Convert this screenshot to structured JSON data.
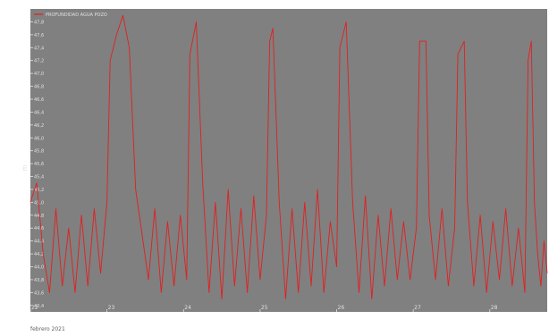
{
  "chart_data": {
    "type": "line",
    "title": "",
    "legend": {
      "position": "top-left",
      "entries": [
        "PROFUNDIDAD AGUA POZO"
      ]
    },
    "xlabel": "febrero 2021",
    "ylabel": "m",
    "xlim": [
      "2021-02-22",
      "2021-02-28T18:00"
    ],
    "ylim": [
      43.3,
      48.0
    ],
    "x_tick_labels": [
      "22",
      "23",
      "24",
      "25",
      "26",
      "27",
      "28"
    ],
    "y_tick_labels": [
      "43,4",
      "43,6",
      "43,8",
      "44,0",
      "44,2",
      "44,4",
      "44,6",
      "44,8",
      "45,0",
      "45,2",
      "45,4",
      "45,6",
      "45,8",
      "46,0",
      "46,2",
      "46,4",
      "46,6",
      "46,8",
      "47,0",
      "47,2",
      "47,4",
      "47,6",
      "47,8"
    ],
    "grid": false,
    "colors": {
      "series": "#e02020",
      "plot_background": "#808080",
      "axis_text": "#e0e0e0"
    },
    "series": [
      {
        "name": "PROFUNDIDAD AGUA POZO",
        "points": [
          [
            "2021-02-22T00:00",
            45.0
          ],
          [
            "2021-02-22T02:00",
            45.3
          ],
          [
            "2021-02-22T04:00",
            44.2
          ],
          [
            "2021-02-22T06:00",
            43.6
          ],
          [
            "2021-02-22T08:00",
            44.9
          ],
          [
            "2021-02-22T10:00",
            43.7
          ],
          [
            "2021-02-22T12:00",
            44.6
          ],
          [
            "2021-02-22T14:00",
            43.6
          ],
          [
            "2021-02-22T16:00",
            44.8
          ],
          [
            "2021-02-22T18:00",
            43.7
          ],
          [
            "2021-02-22T20:00",
            44.9
          ],
          [
            "2021-02-22T22:00",
            43.9
          ],
          [
            "2021-02-23T00:00",
            45.0
          ],
          [
            "2021-02-23T01:00",
            47.2
          ],
          [
            "2021-02-23T03:00",
            47.6
          ],
          [
            "2021-02-23T05:00",
            47.9
          ],
          [
            "2021-02-23T07:00",
            47.4
          ],
          [
            "2021-02-23T09:00",
            45.2
          ],
          [
            "2021-02-23T11:00",
            44.5
          ],
          [
            "2021-02-23T13:00",
            43.8
          ],
          [
            "2021-02-23T15:00",
            44.9
          ],
          [
            "2021-02-23T17:00",
            43.6
          ],
          [
            "2021-02-23T19:00",
            44.7
          ],
          [
            "2021-02-23T21:00",
            43.7
          ],
          [
            "2021-02-23T23:00",
            44.8
          ],
          [
            "2021-02-24T01:00",
            43.8
          ],
          [
            "2021-02-24T02:00",
            47.3
          ],
          [
            "2021-02-24T04:00",
            47.8
          ],
          [
            "2021-02-24T06:00",
            45.3
          ],
          [
            "2021-02-24T08:00",
            43.6
          ],
          [
            "2021-02-24T10:00",
            45.0
          ],
          [
            "2021-02-24T12:00",
            43.5
          ],
          [
            "2021-02-24T14:00",
            45.2
          ],
          [
            "2021-02-24T16:00",
            43.7
          ],
          [
            "2021-02-24T18:00",
            44.9
          ],
          [
            "2021-02-24T20:00",
            43.6
          ],
          [
            "2021-02-24T22:00",
            45.1
          ],
          [
            "2021-02-25T00:00",
            43.8
          ],
          [
            "2021-02-25T02:00",
            44.8
          ],
          [
            "2021-02-25T03:00",
            47.5
          ],
          [
            "2021-02-25T04:00",
            47.7
          ],
          [
            "2021-02-25T06:00",
            45.0
          ],
          [
            "2021-02-25T08:00",
            43.5
          ],
          [
            "2021-02-25T10:00",
            44.9
          ],
          [
            "2021-02-25T12:00",
            43.6
          ],
          [
            "2021-02-25T14:00",
            45.0
          ],
          [
            "2021-02-25T16:00",
            43.7
          ],
          [
            "2021-02-25T18:00",
            45.2
          ],
          [
            "2021-02-25T20:00",
            43.6
          ],
          [
            "2021-02-25T22:00",
            44.7
          ],
          [
            "2021-02-26T00:00",
            44.0
          ],
          [
            "2021-02-26T01:00",
            47.4
          ],
          [
            "2021-02-26T03:00",
            47.8
          ],
          [
            "2021-02-26T05:00",
            45.0
          ],
          [
            "2021-02-26T07:00",
            43.6
          ],
          [
            "2021-02-26T09:00",
            45.1
          ],
          [
            "2021-02-26T11:00",
            43.5
          ],
          [
            "2021-02-26T13:00",
            44.8
          ],
          [
            "2021-02-26T15:00",
            43.7
          ],
          [
            "2021-02-26T17:00",
            44.9
          ],
          [
            "2021-02-26T19:00",
            43.8
          ],
          [
            "2021-02-26T21:00",
            44.7
          ],
          [
            "2021-02-26T23:00",
            43.8
          ],
          [
            "2021-02-27T01:00",
            44.6
          ],
          [
            "2021-02-27T02:00",
            47.5
          ],
          [
            "2021-02-27T04:00",
            47.5
          ],
          [
            "2021-02-27T05:00",
            44.8
          ],
          [
            "2021-02-27T07:00",
            43.8
          ],
          [
            "2021-02-27T09:00",
            44.9
          ],
          [
            "2021-02-27T11:00",
            43.7
          ],
          [
            "2021-02-27T13:00",
            44.6
          ],
          [
            "2021-02-27T14:00",
            47.3
          ],
          [
            "2021-02-27T16:00",
            47.5
          ],
          [
            "2021-02-27T17:00",
            45.0
          ],
          [
            "2021-02-27T19:00",
            43.7
          ],
          [
            "2021-02-27T21:00",
            44.8
          ],
          [
            "2021-02-27T23:00",
            43.6
          ],
          [
            "2021-02-28T01:00",
            44.7
          ],
          [
            "2021-02-28T03:00",
            43.8
          ],
          [
            "2021-02-28T05:00",
            44.9
          ],
          [
            "2021-02-28T07:00",
            43.7
          ],
          [
            "2021-02-28T09:00",
            44.6
          ],
          [
            "2021-02-28T11:00",
            43.6
          ],
          [
            "2021-02-28T12:00",
            47.2
          ],
          [
            "2021-02-28T13:00",
            47.5
          ],
          [
            "2021-02-28T14:00",
            45.0
          ],
          [
            "2021-02-28T15:00",
            44.2
          ],
          [
            "2021-02-28T16:00",
            43.7
          ],
          [
            "2021-02-28T17:00",
            44.4
          ],
          [
            "2021-02-28T18:00",
            43.9
          ]
        ]
      }
    ]
  }
}
